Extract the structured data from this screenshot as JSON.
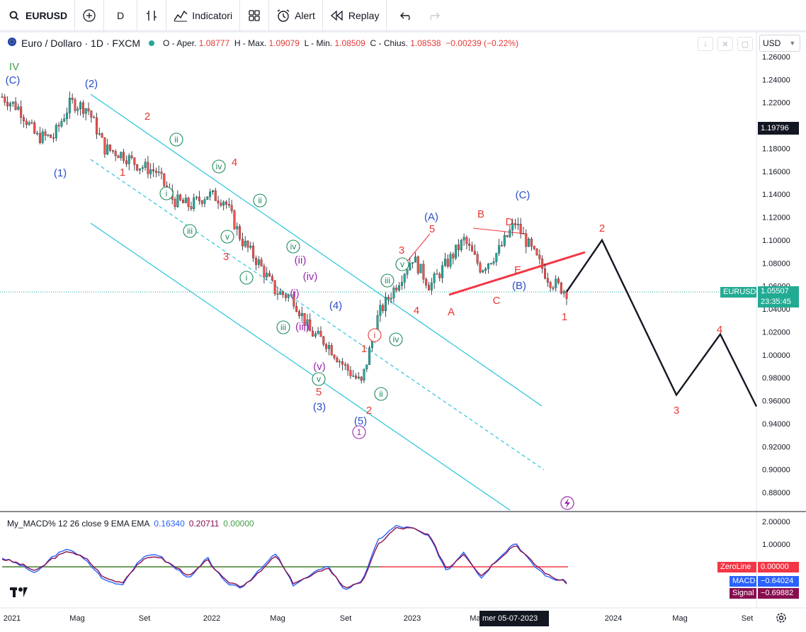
{
  "toolbar": {
    "symbol": "EURUSD",
    "interval": "D",
    "indicators_label": "Indicatori",
    "alert_label": "Alert",
    "replay_label": "Replay"
  },
  "legend": {
    "instrument": "Euro / Dollaro · 1D · FXCM",
    "o_label": "O - Aper.",
    "o_value": "1.08777",
    "h_label": "H - Max.",
    "h_value": "1.09079",
    "l_label": "L - Min.",
    "l_value": "1.08509",
    "c_label": "C - Chius.",
    "c_value": "1.08538",
    "change": "−0.00239 (−0.22%)"
  },
  "currency": "USD",
  "macd_legend": {
    "name": "My_MACD% 12 26 close 9 EMA EMA",
    "v1": "0.16340",
    "v2": "0.20711",
    "v3": "0.00000"
  },
  "price_tags": {
    "top_price": "1.19796",
    "symbol": "EURUSD",
    "last": "1.05507",
    "countdown": "23:35:45"
  },
  "macd_tags": [
    {
      "name": "ZeroLine",
      "value": "0.00000",
      "color": "#f23645"
    },
    {
      "name": "MACD",
      "value": "−0.64024",
      "color": "#2962ff"
    },
    {
      "name": "Signal",
      "value": "−0.69882",
      "color": "#880e4f"
    }
  ],
  "crosshair_date": "mer 05-07-2023",
  "chart_data": [
    {
      "type": "line",
      "title": "Euro / Dollaro · 1D · FXCM",
      "y_ticks": [
        "1.26000",
        "1.24000",
        "1.22000",
        "1.20000",
        "1.18000",
        "1.16000",
        "1.14000",
        "1.12000",
        "1.10000",
        "1.08000",
        "1.06000",
        "1.04000",
        "1.02000",
        "1.00000",
        "0.98000",
        "0.96000",
        "0.94000",
        "0.92000",
        "0.90000",
        "0.88000"
      ],
      "x_ticks": [
        "2021",
        "Mag",
        "Set",
        "2022",
        "Mag",
        "Set",
        "2023",
        "Mag",
        "2024",
        "Mag",
        "Set"
      ],
      "series": [
        {
          "x": [
            "2021-01",
            "2021-02",
            "2021-03",
            "2021-04",
            "2021-05",
            "2021-06",
            "2021-07",
            "2021-08",
            "2021-09",
            "2021-10",
            "2021-11",
            "2021-12",
            "2022-01",
            "2022-02",
            "2022-03",
            "2022-04",
            "2022-05",
            "2022-06",
            "2022-07",
            "2022-08",
            "2022-09",
            "2022-10",
            "2022-11",
            "2022-12",
            "2023-01",
            "2023-02",
            "2023-03",
            "2023-04",
            "2023-05",
            "2023-06",
            "2023-07",
            "2023-08",
            "2023-09",
            "2023-10"
          ],
          "y": [
            1.225,
            1.215,
            1.19,
            1.19,
            1.22,
            1.215,
            1.18,
            1.175,
            1.165,
            1.16,
            1.135,
            1.13,
            1.14,
            1.135,
            1.1,
            1.08,
            1.055,
            1.05,
            1.02,
            1.01,
            0.99,
            0.975,
            1.035,
            1.06,
            1.085,
            1.06,
            1.08,
            1.1,
            1.075,
            1.09,
            1.115,
            1.09,
            1.065,
            1.055
          ]
        }
      ],
      "projection": {
        "x": [
          "2023-10",
          "2023-12",
          "2024-04",
          "2024-07",
          "2024-09"
        ],
        "y": [
          1.055,
          1.1,
          0.965,
          1.018,
          0.955
        ]
      },
      "wave_labels": [
        "IV",
        "(C)",
        "(2)",
        "(1)",
        "2",
        "1",
        "ii",
        "i",
        "iii",
        "iv",
        "4",
        "3",
        "v",
        "ii",
        "i",
        "iii",
        "(ii)",
        "(i)",
        "(iv)",
        "(iii)",
        "iv",
        "v",
        "(4)",
        "(v)",
        "5",
        "(3)",
        "1",
        "2",
        "(5)",
        "1",
        "i",
        "ii",
        "iii",
        "iv",
        "v",
        "3",
        "4",
        "(A)",
        "5",
        "A",
        "B",
        "D",
        "(C)",
        "E",
        "C",
        "(B)",
        "1",
        "2",
        "3",
        "4"
      ],
      "ylim": [
        0.87,
        1.265
      ],
      "grid": false
    },
    {
      "type": "line",
      "title": "My_MACD% 12 26 close 9 EMA EMA",
      "y_ticks": [
        "2.00000",
        "1.00000"
      ],
      "series": [
        {
          "name": "MACD",
          "y": [
            0.4,
            0.1,
            -0.3,
            0.5,
            0.8,
            0.2,
            -0.6,
            -0.8,
            0.3,
            0.6,
            0.0,
            -0.5,
            0.4,
            -0.7,
            -0.9,
            -0.2,
            0.6,
            -0.8,
            -0.4,
            0.1,
            -1.0,
            -0.7,
            1.2,
            1.8,
            1.7,
            1.3,
            -0.2,
            0.7,
            -0.5,
            0.4,
            1.1,
            0.1,
            -0.5,
            -0.64
          ]
        },
        {
          "name": "Signal",
          "y": [
            0.35,
            0.15,
            -0.2,
            0.4,
            0.7,
            0.3,
            -0.5,
            -0.7,
            0.2,
            0.5,
            0.05,
            -0.4,
            0.3,
            -0.6,
            -0.85,
            -0.3,
            0.5,
            -0.7,
            -0.45,
            0.0,
            -0.9,
            -0.75,
            1.0,
            1.7,
            1.7,
            1.35,
            -0.1,
            0.6,
            -0.4,
            0.35,
            1.0,
            0.2,
            -0.4,
            -0.7
          ]
        }
      ],
      "zero_line": 0.0
    }
  ]
}
